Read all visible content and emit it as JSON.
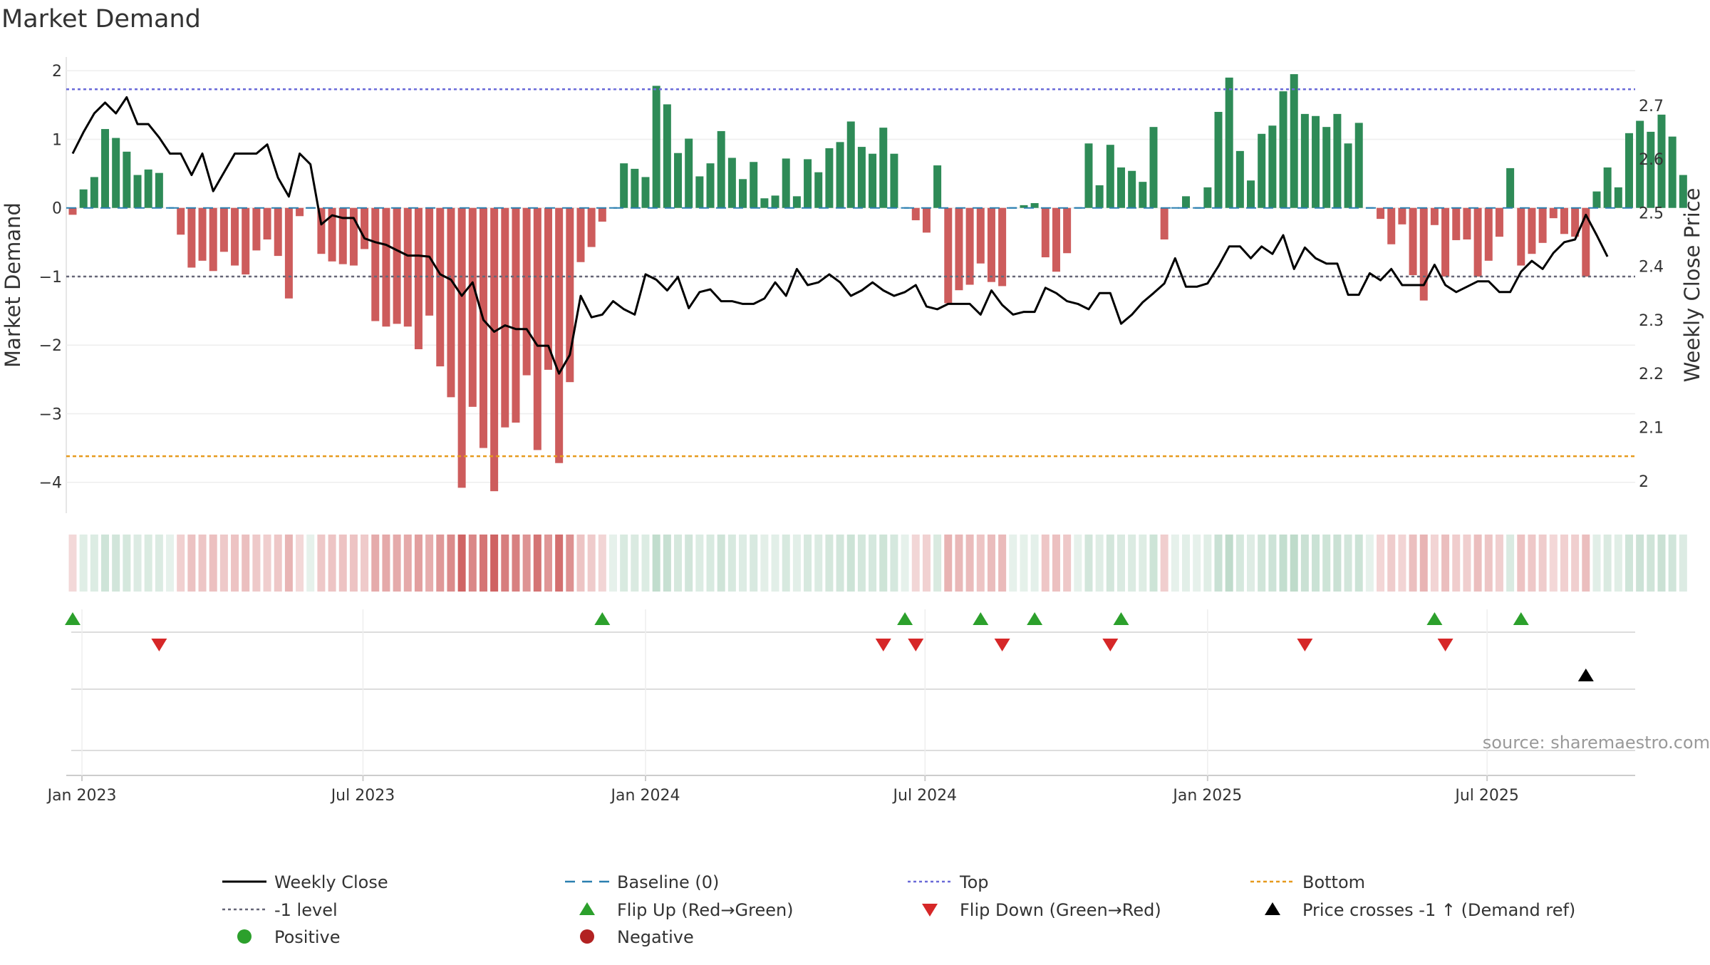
{
  "chart_data": {
    "type": "bar+line",
    "title": "Market Demand",
    "ylabel_left": "Market Demand",
    "ylabel_right": "Weekly Close Price",
    "ylim_left": [
      -4.45,
      2.2
    ],
    "ylim_right": [
      1.94,
      2.79
    ],
    "yticks_left": [
      2,
      1,
      0,
      -1,
      -2,
      -3,
      -4
    ],
    "ytick_labels_left": [
      "2",
      "1",
      "0",
      "−1",
      "−2",
      "−3",
      "−4"
    ],
    "yticks_right": [
      2.7,
      2.6,
      2.5,
      2.4,
      2.3,
      2.2,
      2.1,
      2
    ],
    "ytick_labels_right": [
      "2.7",
      "2.6",
      "2.5",
      "2.4",
      "2.3",
      "2.2",
      "2.1",
      "2"
    ],
    "reference_lines": {
      "top": 1.73,
      "minus_one": -1.0,
      "bottom": -3.62,
      "baseline": 0
    },
    "x_start": "2022-12-26",
    "x_tick_labels": [
      "Jan 2023",
      "Jul 2023",
      "Jan 2024",
      "Jul 2024",
      "Jan 2025",
      "Jul 2025"
    ],
    "x_tick_weeks": [
      0.86,
      26.86,
      53,
      78.86,
      105,
      130.86
    ],
    "demand": [
      -0.1,
      0.27,
      0.45,
      1.15,
      1.02,
      0.82,
      0.48,
      0.56,
      0.51,
      0,
      -0.39,
      -0.87,
      -0.77,
      -0.92,
      -0.64,
      -0.84,
      -0.97,
      -0.62,
      -0.46,
      -0.7,
      -1.32,
      -0.12,
      0,
      -0.67,
      -0.78,
      -0.82,
      -0.84,
      -0.6,
      -1.65,
      -1.73,
      -1.69,
      -1.73,
      -2.06,
      -1.57,
      -2.31,
      -2.76,
      -4.08,
      -2.9,
      -3.5,
      -4.13,
      -3.2,
      -3.13,
      -2.44,
      -3.53,
      -2.36,
      -3.72,
      -2.54,
      -0.79,
      -0.57,
      -0.2,
      0,
      0.65,
      0.57,
      0.45,
      1.78,
      1.51,
      0.8,
      1.01,
      0.46,
      0.65,
      1.12,
      0.73,
      0.42,
      0.67,
      0.14,
      0.18,
      0.72,
      0.17,
      0.71,
      0.52,
      0.87,
      0.96,
      1.26,
      0.89,
      0.79,
      1.17,
      0.79,
      0,
      -0.18,
      -0.36,
      0.62,
      -1.39,
      -1.2,
      -1.12,
      -0.81,
      -1.08,
      -1.14,
      0,
      0.04,
      0.07,
      -0.72,
      -0.93,
      -0.66,
      0,
      0.94,
      0.33,
      0.92,
      0.59,
      0.54,
      0.38,
      1.18,
      -0.46,
      0,
      0.17,
      0,
      0.3,
      1.4,
      1.9,
      0.83,
      0.4,
      1.08,
      1.2,
      1.7,
      1.95,
      1.37,
      1.34,
      1.18,
      1.37,
      0.94,
      1.24,
      0,
      -0.16,
      -0.53,
      -0.24,
      -0.98,
      -1.35,
      -0.25,
      -1.0,
      -0.47,
      -0.46,
      -1.0,
      -0.77,
      -0.42,
      0.58,
      -0.84,
      -0.67,
      -0.51,
      -0.15,
      -0.38,
      -0.42,
      -1.0,
      0.24,
      0.59,
      0.3,
      1.09,
      1.27,
      1.11,
      1.36,
      1.04,
      0.48
    ],
    "weekly_close": [
      2.61,
      2.65,
      2.685,
      2.705,
      2.685,
      2.715,
      2.665,
      2.665,
      2.64,
      2.61,
      2.61,
      2.57,
      2.61,
      2.54,
      2.575,
      2.61,
      2.61,
      2.61,
      2.627,
      2.565,
      2.53,
      2.61,
      2.59,
      2.478,
      2.495,
      2.49,
      2.49,
      2.452,
      2.445,
      2.44,
      2.43,
      2.42,
      2.42,
      2.418,
      2.385,
      2.375,
      2.345,
      2.37,
      2.3,
      2.278,
      2.29,
      2.283,
      2.283,
      2.252,
      2.252,
      2.2,
      2.235,
      2.345,
      2.305,
      2.31,
      2.335,
      2.32,
      2.31,
      2.385,
      2.375,
      2.355,
      2.38,
      2.322,
      2.352,
      2.357,
      2.335,
      2.335,
      2.33,
      2.33,
      2.34,
      2.37,
      2.345,
      2.395,
      2.365,
      2.37,
      2.385,
      2.37,
      2.345,
      2.355,
      2.37,
      2.355,
      2.345,
      2.352,
      2.365,
      2.325,
      2.32,
      2.33,
      2.33,
      2.33,
      2.31,
      2.355,
      2.328,
      2.31,
      2.315,
      2.315,
      2.36,
      2.35,
      2.335,
      2.33,
      2.32,
      2.35,
      2.35,
      2.293,
      2.31,
      2.333,
      2.35,
      2.368,
      2.415,
      2.362,
      2.362,
      2.368,
      2.4,
      2.437,
      2.437,
      2.415,
      2.437,
      2.423,
      2.458,
      2.395,
      2.435,
      2.415,
      2.405,
      2.405,
      2.347,
      2.347,
      2.387,
      2.374,
      2.395,
      2.365,
      2.365,
      2.365,
      2.403,
      2.365,
      2.352,
      2.362,
      2.372,
      2.372,
      2.352,
      2.352,
      2.39,
      2.41,
      2.395,
      2.425,
      2.445,
      2.45,
      2.496,
      2.458,
      2.418
    ],
    "price_ylim_for_line": [
      2.18,
      2.75
    ],
    "flip_up_weeks": [
      0,
      49,
      77,
      84,
      89,
      97,
      126,
      134
    ],
    "flip_down_weeks": [
      8,
      75,
      78,
      86,
      96,
      114,
      127
    ],
    "price_cross_weeks": [
      140
    ],
    "legend": [
      [
        "Weekly Close",
        "Baseline (0)",
        "Top",
        "Bottom"
      ],
      [
        "-1 level",
        "Flip Up (Red→Green)",
        "Flip Down (Green→Red)",
        "Price crosses -1 ↑ (Demand ref)"
      ],
      [
        "Positive",
        "Negative"
      ]
    ],
    "source": "source: sharemaestro.com",
    "colors": {
      "positive": "#2e8b57",
      "negative": "#cd5c5c",
      "top": "#6a6ad8",
      "bottom": "#e69a1e",
      "minus_one": "#666677",
      "baseline": "#2a7fb0",
      "close": "#000000",
      "flip_up": "#2ca02c",
      "flip_down": "#d62728",
      "positive_dot": "#2ca02c",
      "negative_dot": "#b22222"
    }
  }
}
